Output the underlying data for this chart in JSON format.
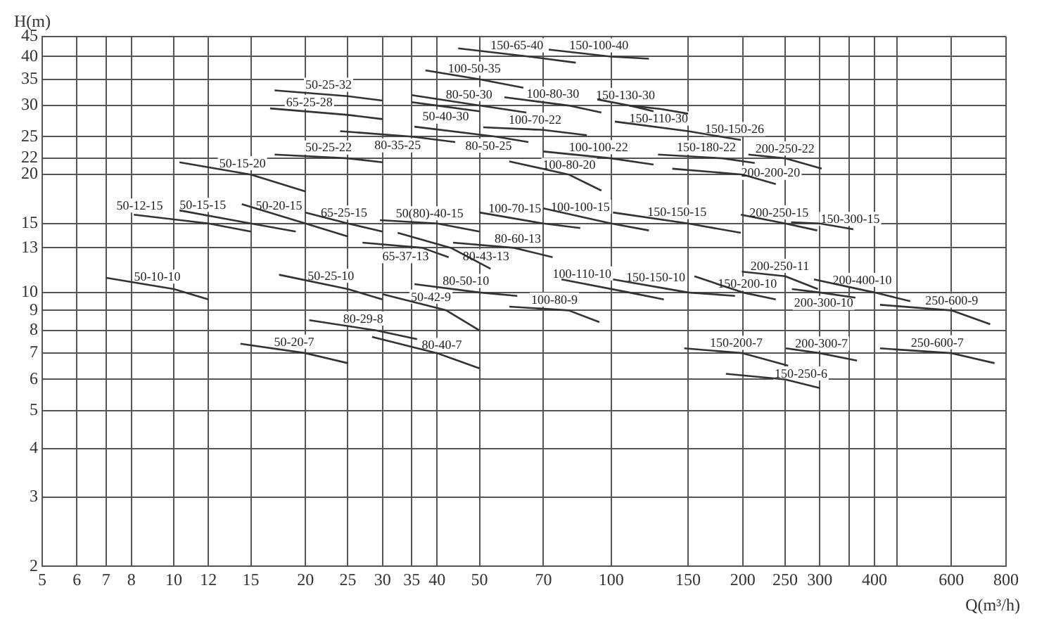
{
  "chart_data": {
    "type": "line",
    "xlabel": "Q(m³/h)",
    "ylabel": "H(m)",
    "log": "xy",
    "grid": true,
    "xlim": [
      5,
      800
    ],
    "xticks": [
      5,
      6,
      7,
      8,
      10,
      12,
      15,
      20,
      25,
      30,
      35,
      40,
      50,
      70,
      100,
      150,
      200,
      250,
      300,
      {
        "value": 350,
        "label": null
      },
      400,
      {
        "value": 450,
        "label": null
      },
      600,
      800
    ],
    "ylim": [
      2,
      45
    ],
    "yticks": [
      2,
      3,
      4,
      5,
      6,
      7,
      8,
      9,
      10,
      13,
      15,
      20,
      22,
      25,
      30,
      35,
      40,
      45
    ],
    "series": [
      {
        "name": "50-10-10",
        "color": "#333333",
        "x": [
          7,
          10,
          12
        ],
        "values": [
          10.9,
          10.2,
          9.6
        ]
      },
      {
        "name": "50-15-20",
        "color": "#333333",
        "x": [
          10.3,
          15,
          20
        ],
        "values": [
          21.5,
          20,
          18.1
        ]
      },
      {
        "name": "50-15-15",
        "color": "#333333",
        "x": [
          10.3,
          15,
          19
        ],
        "values": [
          16.2,
          15,
          14.3
        ]
      },
      {
        "name": "50-12-15",
        "color": "#333333",
        "x": [
          8.1,
          12,
          15
        ],
        "values": [
          15.8,
          15,
          14.3
        ]
      },
      {
        "name": "50-20-15",
        "color": "#333333",
        "x": [
          14.3,
          20,
          25
        ],
        "values": [
          16.8,
          15,
          13.9
        ]
      },
      {
        "name": "65-25-15",
        "color": "#333333",
        "x": [
          20,
          25,
          30
        ],
        "values": [
          16,
          15,
          14.3
        ]
      },
      {
        "name": "50-25-32",
        "color": "#333333",
        "x": [
          17,
          25,
          30
        ],
        "values": [
          32.8,
          31.7,
          30.9
        ]
      },
      {
        "name": "65-25-28",
        "color": "#333333",
        "x": [
          16.6,
          25,
          30
        ],
        "values": [
          29.5,
          28.4,
          27.7
        ]
      },
      {
        "name": "50-25-22",
        "color": "#333333",
        "x": [
          17,
          25,
          30
        ],
        "values": [
          22.5,
          22,
          21.5
        ]
      },
      {
        "name": "80-35-25",
        "color": "#333333",
        "x": [
          24,
          35,
          44
        ],
        "values": [
          25.8,
          25,
          24.2
        ]
      },
      {
        "name": "50-25-10",
        "color": "#333333",
        "x": [
          17.4,
          25,
          30
        ],
        "values": [
          11.1,
          10.2,
          9.6
        ]
      },
      {
        "name": "80-29-8",
        "color": "#333333",
        "x": [
          20.4,
          29,
          36
        ],
        "values": [
          8.5,
          8,
          7.6
        ]
      },
      {
        "name": "50-20-7",
        "color": "#333333",
        "x": [
          14.2,
          20,
          25
        ],
        "values": [
          7.4,
          7,
          6.6
        ]
      },
      {
        "name": "80-40-7",
        "color": "#333333",
        "x": [
          28.4,
          40,
          50
        ],
        "values": [
          7.7,
          7,
          6.4
        ]
      },
      {
        "name": "50-42-9",
        "color": "#333333",
        "x": [
          30,
          42,
          50
        ],
        "values": [
          9.9,
          9,
          8
        ]
      },
      {
        "name": "80-50-10",
        "color": "#333333",
        "x": [
          35.5,
          50,
          61
        ],
        "values": [
          10.5,
          10,
          9.8
        ]
      },
      {
        "name": "100-80-9",
        "color": "#333333",
        "x": [
          58.5,
          80,
          94
        ],
        "values": [
          9.2,
          9,
          8.4
        ]
      },
      {
        "name": "100-110-10",
        "color": "#333333",
        "x": [
          77,
          110,
          132
        ],
        "values": [
          10.8,
          10,
          9.6
        ]
      },
      {
        "name": "150-150-10",
        "color": "#333333",
        "x": [
          101,
          150,
          192
        ],
        "values": [
          10.8,
          10,
          9.8
        ]
      },
      {
        "name": "150-200-10",
        "color": "#333333",
        "x": [
          155,
          200,
          238
        ],
        "values": [
          11,
          10,
          9.6
        ]
      },
      {
        "name": "150-200-7",
        "color": "#333333",
        "x": [
          147,
          200,
          254
        ],
        "values": [
          7.2,
          7,
          6.5
        ]
      },
      {
        "name": "150-250-6",
        "color": "#333333",
        "x": [
          183,
          250,
          300
        ],
        "values": [
          6.2,
          6,
          5.7
        ]
      },
      {
        "name": "200-250-11",
        "color": "#333333",
        "x": [
          199,
          250,
          297
        ],
        "values": [
          11.3,
          11,
          10.2
        ]
      },
      {
        "name": "200-300-10",
        "color": "#333333",
        "x": [
          259,
          300,
          362
        ],
        "values": [
          10.2,
          10,
          9.7
        ]
      },
      {
        "name": "200-400-10",
        "color": "#333333",
        "x": [
          291,
          400,
          483
        ],
        "values": [
          10.8,
          10,
          9.5
        ]
      },
      {
        "name": "250-600-9",
        "color": "#333333",
        "x": [
          412,
          600,
          736
        ],
        "values": [
          9.3,
          9,
          8.3
        ]
      },
      {
        "name": "250-600-7",
        "color": "#333333",
        "x": [
          412,
          600,
          753
        ],
        "values": [
          7.2,
          7,
          6.6
        ]
      },
      {
        "name": "200-300-7",
        "color": "#333333",
        "x": [
          251,
          300,
          365
        ],
        "values": [
          7.2,
          7,
          6.7
        ]
      },
      {
        "name": "200-250-22",
        "color": "#333333",
        "x": [
          206,
          250,
          303
        ],
        "values": [
          22.5,
          22,
          20.7
        ]
      },
      {
        "name": "200-200-20",
        "color": "#333333",
        "x": [
          138,
          200,
          238
        ],
        "values": [
          20.7,
          20,
          18.9
        ]
      },
      {
        "name": "200-250-15",
        "color": "#333333",
        "x": [
          198,
          250,
          296
        ],
        "values": [
          15.8,
          15,
          14.4
        ]
      },
      {
        "name": "150-300-15",
        "color": "#333333",
        "x": [
          258,
          300,
          358
        ],
        "values": [
          15.1,
          15,
          14.5
        ]
      },
      {
        "name": "150-65-40",
        "color": "#333333",
        "x": [
          44.7,
          65,
          83
        ],
        "values": [
          42,
          40,
          38.6
        ]
      },
      {
        "name": "150-100-40",
        "color": "#333333",
        "x": [
          72,
          100,
          122
        ],
        "values": [
          41.7,
          40,
          39.5
        ]
      },
      {
        "name": "100-50-35",
        "color": "#333333",
        "x": [
          37.6,
          50,
          63
        ],
        "values": [
          36.9,
          35,
          33.3
        ]
      },
      {
        "name": "100-80-30",
        "color": "#333333",
        "x": [
          57,
          80,
          95
        ],
        "values": [
          31.5,
          30,
          28.8
        ]
      },
      {
        "name": "150-130-30",
        "color": "#333333",
        "x": [
          93,
          110,
          125
        ],
        "values": [
          31.1,
          30,
          29
        ]
      },
      {
        "name": "150-110-30",
        "color": "#333333",
        "x": [
          110,
          130,
          150
        ],
        "values": [
          30,
          29.4,
          28.6
        ]
      },
      {
        "name": "150-150-26",
        "color": "#333333",
        "x": [
          102,
          150,
          198
        ],
        "values": [
          27.3,
          25.8,
          24.5
        ]
      },
      {
        "name": "80-50-30",
        "color": "#333333",
        "x": [
          35,
          50,
          64
        ],
        "values": [
          31.9,
          30,
          28.8
        ]
      },
      {
        "name": "50-40-30",
        "color": "#333333",
        "x": [
          35,
          40,
          50
        ],
        "values": [
          30.6,
          30,
          29
        ]
      },
      {
        "name": "80-50-25",
        "color": "#333333",
        "x": [
          35.5,
          54.5,
          64.7
        ],
        "values": [
          26.5,
          25,
          24.2
        ]
      },
      {
        "name": "100-70-22",
        "color": "#333333",
        "x": [
          51,
          70,
          88
        ],
        "values": [
          26.4,
          26,
          25.2
        ]
      },
      {
        "name": "100-100-22",
        "color": "#333333",
        "x": [
          70,
          100,
          125
        ],
        "values": [
          22.9,
          22,
          21.2
        ]
      },
      {
        "name": "100-80-20",
        "color": "#333333",
        "x": [
          58.5,
          80,
          95
        ],
        "values": [
          21.6,
          20,
          18.2
        ]
      },
      {
        "name": "150-180-22",
        "color": "#333333",
        "x": [
          128,
          180,
          213
        ],
        "values": [
          22.5,
          22,
          21.4
        ]
      },
      {
        "name": "100-70-15",
        "color": "#333333",
        "x": [
          50,
          70,
          85
        ],
        "values": [
          16,
          15,
          14.6
        ]
      },
      {
        "name": "100-100-15",
        "color": "#333333",
        "x": [
          70,
          100,
          122
        ],
        "values": [
          16.4,
          15,
          14.4
        ]
      },
      {
        "name": "150-150-15",
        "color": "#333333",
        "x": [
          101,
          150,
          198
        ],
        "values": [
          16,
          15,
          14.2
        ]
      },
      {
        "name": "50(80)-40-15",
        "color": "#333333",
        "x": [
          29.6,
          40,
          50
        ],
        "values": [
          15.3,
          15,
          14.3
        ]
      },
      {
        "name": "80-43-13",
        "color": "#333333",
        "x": [
          32.5,
          43,
          53
        ],
        "values": [
          14.2,
          13,
          11.5
        ]
      },
      {
        "name": "80-60-13",
        "color": "#333333",
        "x": [
          43.5,
          60,
          73.5
        ],
        "values": [
          13.4,
          13,
          12.3
        ]
      },
      {
        "name": "65-37-13",
        "color": "#333333",
        "x": [
          27,
          37,
          42.5
        ],
        "values": [
          13.4,
          13,
          12.3
        ]
      }
    ]
  }
}
